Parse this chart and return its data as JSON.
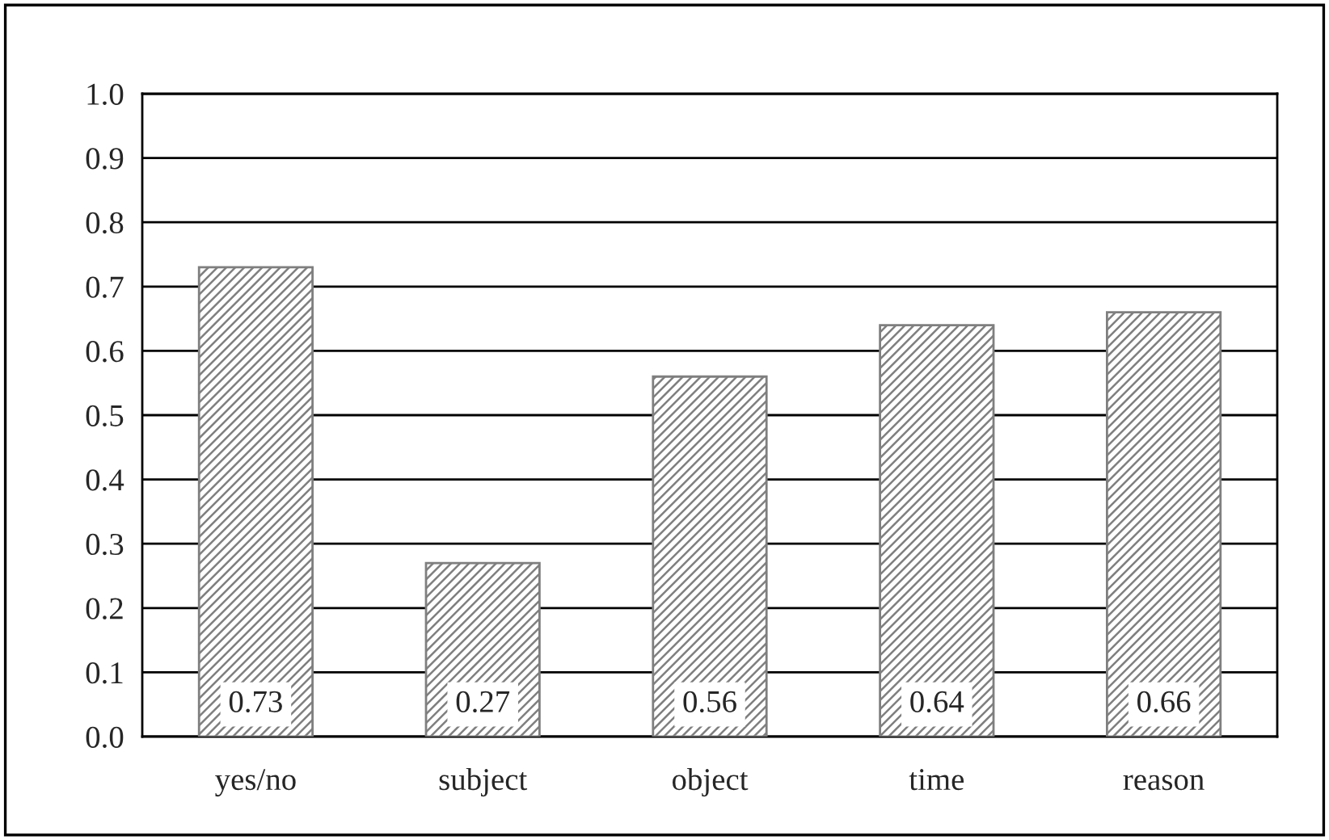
{
  "chart_data": {
    "type": "bar",
    "categories": [
      "yes/no",
      "subject",
      "object",
      "time",
      "reason"
    ],
    "values": [
      0.73,
      0.27,
      0.56,
      0.64,
      0.66
    ],
    "color": "#7f7f7f",
    "ylim": [
      0,
      1.0
    ],
    "yticks": [
      {
        "value": 0,
        "label": "0.0"
      },
      {
        "value": 0.1,
        "label": "0.1"
      },
      {
        "value": 0.2,
        "label": "0.2"
      },
      {
        "value": 0.3,
        "label": "0.3"
      },
      {
        "value": 0.4,
        "label": "0.4"
      },
      {
        "value": 0.5,
        "label": "0.5"
      },
      {
        "value": 0.6,
        "label": "0.6"
      },
      {
        "value": 0.7,
        "label": "0.7"
      },
      {
        "value": 0.8,
        "label": "0.8"
      },
      {
        "value": 0.9,
        "label": "0.9"
      },
      {
        "value": 1.0,
        "label": "1.0"
      }
    ],
    "grid": "y",
    "data_labels": true
  }
}
